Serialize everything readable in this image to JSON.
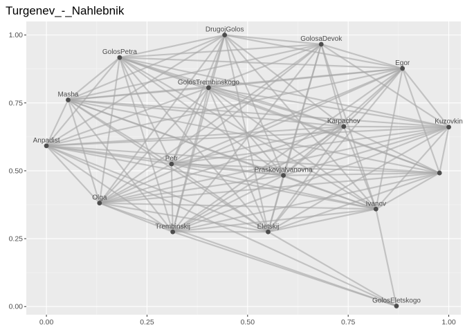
{
  "chart_data": {
    "type": "network",
    "title": "Turgenev_-_Nahlebnik",
    "xlabel": "",
    "ylabel": "",
    "xlim": [
      -0.05,
      1.03
    ],
    "ylim": [
      -0.03,
      1.05
    ],
    "x_ticks": [
      0.0,
      0.25,
      0.5,
      0.75,
      1.0
    ],
    "x_tick_labels": [
      "0.00",
      "0.25",
      "0.50",
      "0.75",
      "1.00"
    ],
    "y_ticks": [
      0.0,
      0.25,
      0.5,
      0.75,
      1.0
    ],
    "y_tick_labels": [
      "0.00",
      "0.25",
      "0.50",
      "0.75",
      "1.00"
    ],
    "grid": true,
    "colors": {
      "panel": "#ebebeb",
      "grid_major": "#ffffff",
      "grid_minor": "#f5f5f5",
      "edge": "#a6a6a6",
      "node": "#4d4d4d",
      "label": "#4d4d4d"
    },
    "nodes": [
      {
        "label": "DrugojGolos",
        "x": 0.443,
        "y": 1.0
      },
      {
        "label": "GolosaDevok",
        "x": 0.683,
        "y": 0.966
      },
      {
        "label": "GolosPetra",
        "x": 0.182,
        "y": 0.917
      },
      {
        "label": "Egor",
        "x": 0.885,
        "y": 0.877
      },
      {
        "label": "GolosTrembinskogo",
        "x": 0.403,
        "y": 0.806
      },
      {
        "label": "Masha",
        "x": 0.054,
        "y": 0.761
      },
      {
        "label": "Karpachov",
        "x": 0.739,
        "y": 0.663
      },
      {
        "label": "Kuzovkin",
        "x": 1.0,
        "y": 0.661
      },
      {
        "label": "Anpadist",
        "x": 0.0,
        "y": 0.592
      },
      {
        "label": "Petr",
        "x": 0.311,
        "y": 0.525
      },
      {
        "label": "",
        "x": 0.977,
        "y": 0.492
      },
      {
        "label": "Praskovjalvanovna",
        "x": 0.589,
        "y": 0.483
      },
      {
        "label": "Olga",
        "x": 0.132,
        "y": 0.381
      },
      {
        "label": "Ivanov",
        "x": 0.819,
        "y": 0.359
      },
      {
        "label": "Trembinskij",
        "x": 0.314,
        "y": 0.275
      },
      {
        "label": "Eletskij",
        "x": 0.551,
        "y": 0.275
      },
      {
        "label": "GolosEletskogo",
        "x": 0.87,
        "y": 0.002
      }
    ],
    "edges": [
      [
        0,
        1
      ],
      [
        0,
        2
      ],
      [
        0,
        3
      ],
      [
        0,
        4
      ],
      [
        0,
        5
      ],
      [
        0,
        6
      ],
      [
        0,
        8
      ],
      [
        0,
        9
      ],
      [
        0,
        11
      ],
      [
        0,
        12
      ],
      [
        0,
        14
      ],
      [
        0,
        15
      ],
      [
        0,
        13
      ],
      [
        1,
        2
      ],
      [
        1,
        3
      ],
      [
        1,
        4
      ],
      [
        1,
        6
      ],
      [
        1,
        7
      ],
      [
        1,
        11
      ],
      [
        1,
        12
      ],
      [
        1,
        14
      ],
      [
        1,
        15
      ],
      [
        1,
        13
      ],
      [
        1,
        9
      ],
      [
        1,
        5
      ],
      [
        2,
        3
      ],
      [
        2,
        4
      ],
      [
        2,
        5
      ],
      [
        2,
        6
      ],
      [
        2,
        7
      ],
      [
        2,
        8
      ],
      [
        2,
        9
      ],
      [
        2,
        11
      ],
      [
        2,
        12
      ],
      [
        2,
        14
      ],
      [
        2,
        15
      ],
      [
        2,
        10
      ],
      [
        2,
        13
      ],
      [
        3,
        4
      ],
      [
        3,
        5
      ],
      [
        3,
        6
      ],
      [
        3,
        7
      ],
      [
        3,
        9
      ],
      [
        3,
        11
      ],
      [
        3,
        12
      ],
      [
        3,
        14
      ],
      [
        3,
        15
      ],
      [
        3,
        13
      ],
      [
        3,
        10
      ],
      [
        3,
        8
      ],
      [
        4,
        5
      ],
      [
        4,
        6
      ],
      [
        4,
        7
      ],
      [
        4,
        8
      ],
      [
        4,
        9
      ],
      [
        4,
        11
      ],
      [
        4,
        12
      ],
      [
        4,
        14
      ],
      [
        4,
        15
      ],
      [
        4,
        13
      ],
      [
        4,
        10
      ],
      [
        5,
        6
      ],
      [
        5,
        7
      ],
      [
        5,
        8
      ],
      [
        5,
        9
      ],
      [
        5,
        10
      ],
      [
        5,
        11
      ],
      [
        5,
        12
      ],
      [
        5,
        13
      ],
      [
        5,
        14
      ],
      [
        5,
        15
      ],
      [
        6,
        7
      ],
      [
        6,
        8
      ],
      [
        6,
        9
      ],
      [
        6,
        10
      ],
      [
        6,
        11
      ],
      [
        6,
        12
      ],
      [
        6,
        13
      ],
      [
        6,
        14
      ],
      [
        6,
        15
      ],
      [
        7,
        8
      ],
      [
        7,
        9
      ],
      [
        7,
        11
      ],
      [
        7,
        12
      ],
      [
        7,
        13
      ],
      [
        7,
        14
      ],
      [
        7,
        15
      ],
      [
        7,
        10
      ],
      [
        8,
        9
      ],
      [
        8,
        10
      ],
      [
        8,
        11
      ],
      [
        8,
        12
      ],
      [
        8,
        13
      ],
      [
        8,
        14
      ],
      [
        8,
        15
      ],
      [
        9,
        10
      ],
      [
        9,
        11
      ],
      [
        9,
        12
      ],
      [
        9,
        13
      ],
      [
        9,
        14
      ],
      [
        9,
        15
      ],
      [
        10,
        11
      ],
      [
        10,
        12
      ],
      [
        10,
        13
      ],
      [
        10,
        14
      ],
      [
        10,
        15
      ],
      [
        11,
        12
      ],
      [
        11,
        13
      ],
      [
        11,
        14
      ],
      [
        11,
        15
      ],
      [
        12,
        13
      ],
      [
        12,
        14
      ],
      [
        12,
        15
      ],
      [
        12,
        16
      ],
      [
        13,
        14
      ],
      [
        13,
        15
      ],
      [
        13,
        16
      ],
      [
        14,
        15
      ],
      [
        14,
        16
      ],
      [
        15,
        16
      ],
      [
        8,
        16
      ]
    ]
  }
}
